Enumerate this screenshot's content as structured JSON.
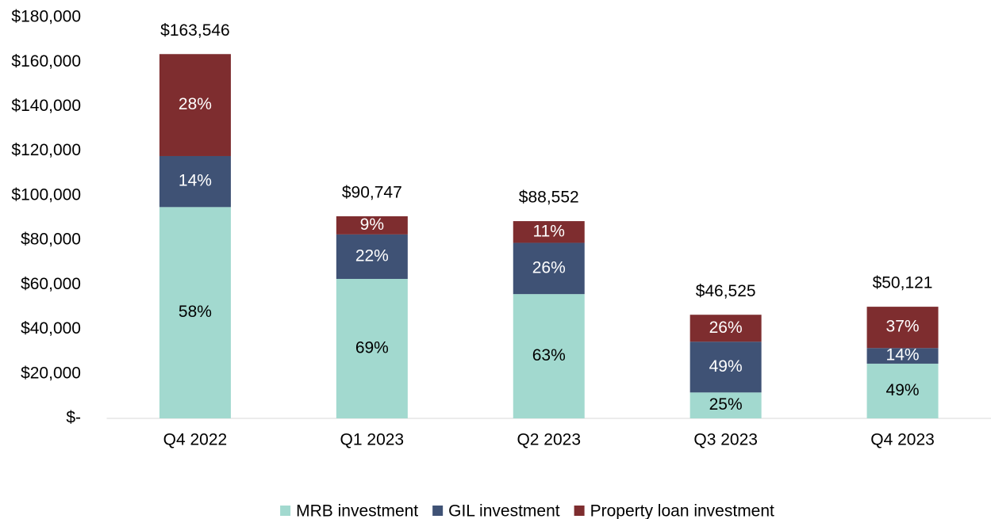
{
  "chart_data": {
    "type": "stacked_bar",
    "categories": [
      "Q4 2022",
      "Q1 2023",
      "Q2 2023",
      "Q3 2023",
      "Q4 2023"
    ],
    "series": [
      {
        "name": "MRB investment",
        "color": "#a2d9cf",
        "label_color": "#000000",
        "values": [
          94857,
          62615,
          55788,
          11631,
          24559
        ],
        "value_labels": [
          "58%",
          "69%",
          "63%",
          "25%",
          "49%"
        ]
      },
      {
        "name": "GIL investment",
        "color": "#3f5275",
        "label_color": "#ffffff",
        "values": [
          22896,
          19964,
          23024,
          22797,
          7017
        ],
        "value_labels": [
          "14%",
          "22%",
          "26%",
          "49%",
          "14%"
        ]
      },
      {
        "name": "Property loan investment",
        "color": "#7e2d2f",
        "label_color": "#ffffff",
        "values": [
          45793,
          8168,
          9740,
          12097,
          18545
        ],
        "value_labels": [
          "28%",
          "9%",
          "11%",
          "26%",
          "37%"
        ]
      }
    ],
    "totals": [
      163546,
      90747,
      88552,
      46525,
      50121
    ],
    "total_labels": [
      "$163,546",
      "$90,747",
      "$88,552",
      "$46,525",
      "$50,121"
    ],
    "ylim": [
      0,
      180000
    ],
    "yticks": [
      {
        "value": 0,
        "label": "$-"
      },
      {
        "value": 20000,
        "label": "$20,000"
      },
      {
        "value": 40000,
        "label": "$40,000"
      },
      {
        "value": 60000,
        "label": "$60,000"
      },
      {
        "value": 80000,
        "label": "$80,000"
      },
      {
        "value": 100000,
        "label": "$100,000"
      },
      {
        "value": 120000,
        "label": "$120,000"
      },
      {
        "value": 140000,
        "label": "$140,000"
      },
      {
        "value": 160000,
        "label": "$160,000"
      },
      {
        "value": 180000,
        "label": "$180,000"
      }
    ],
    "grid": false,
    "legend": "bottom"
  }
}
